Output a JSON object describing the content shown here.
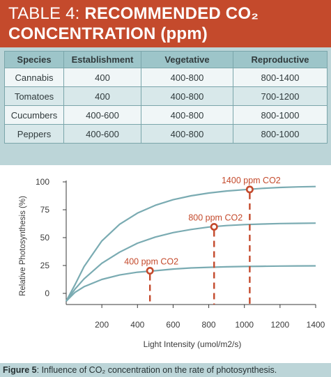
{
  "header": {
    "title_prefix": "TABLE 4: ",
    "title_bold_1": "RECOMMENDED CO₂",
    "title_bold_2": "CONCENTRATION (ppm)"
  },
  "table": {
    "columns": [
      "Species",
      "Establishment",
      "Vegetative",
      "Reproductive"
    ],
    "rows": [
      [
        "Cannabis",
        "400",
        "400-800",
        "800-1400"
      ],
      [
        "Tomatoes",
        "400",
        "400-800",
        "700-1200"
      ],
      [
        "Cucumbers",
        "400-600",
        "400-800",
        "800-1000"
      ],
      [
        "Peppers",
        "400-600",
        "400-800",
        "800-1000"
      ]
    ]
  },
  "chart_data": {
    "type": "line",
    "xlabel": "Light Intensity (umol/m2/s)",
    "ylabel": "Relative Photosynthesis (%)",
    "xlim": [
      0,
      1400
    ],
    "ylim": [
      -10,
      100
    ],
    "xticks": [
      200,
      400,
      600,
      800,
      1000,
      1200,
      1400
    ],
    "yticks": [
      0,
      25,
      50,
      75,
      100
    ],
    "grid": false,
    "colors": {
      "curve": "#7aabb2",
      "marker": "#c44a2c",
      "axis": "#3a3a3a",
      "text": "#3a3a3a"
    },
    "series": [
      {
        "name": "400 ppm CO2",
        "x": [
          0,
          50,
          100,
          200,
          300,
          400,
          500,
          600,
          700,
          800,
          900,
          1000,
          1100,
          1200,
          1300,
          1400
        ],
        "y": [
          -7,
          1,
          6,
          12.5,
          16.5,
          19,
          20.3,
          21.8,
          22.8,
          23.4,
          23.8,
          24.1,
          24.3,
          24.5,
          24.6,
          24.7
        ]
      },
      {
        "name": "800 ppm CO2",
        "x": [
          0,
          50,
          100,
          200,
          300,
          400,
          500,
          600,
          700,
          800,
          900,
          1000,
          1100,
          1200,
          1300,
          1400
        ],
        "y": [
          -7,
          4,
          13,
          27,
          37,
          45,
          50.5,
          54.5,
          57.3,
          59.5,
          60.8,
          61.7,
          62.2,
          62.6,
          62.8,
          63
        ]
      },
      {
        "name": "1400 ppm CO2",
        "x": [
          0,
          50,
          100,
          200,
          300,
          400,
          500,
          600,
          700,
          800,
          900,
          1000,
          1100,
          1200,
          1300,
          1400
        ],
        "y": [
          -7,
          8,
          24,
          47,
          62,
          72,
          79,
          84,
          87.5,
          90,
          91.8,
          93,
          94.2,
          95,
          95.5,
          95.8
        ]
      }
    ],
    "annotations": [
      {
        "label": "400 ppm CO2",
        "x": 470,
        "y": 20.3
      },
      {
        "label": "800 ppm CO2",
        "x": 830,
        "y": 59.7
      },
      {
        "label": "1400 ppm CO2",
        "x": 1030,
        "y": 93.2
      }
    ]
  },
  "caption": {
    "label": "Figure 5",
    "text": ": Influence of CO₂ concentration on the rate of photosynthesis."
  }
}
